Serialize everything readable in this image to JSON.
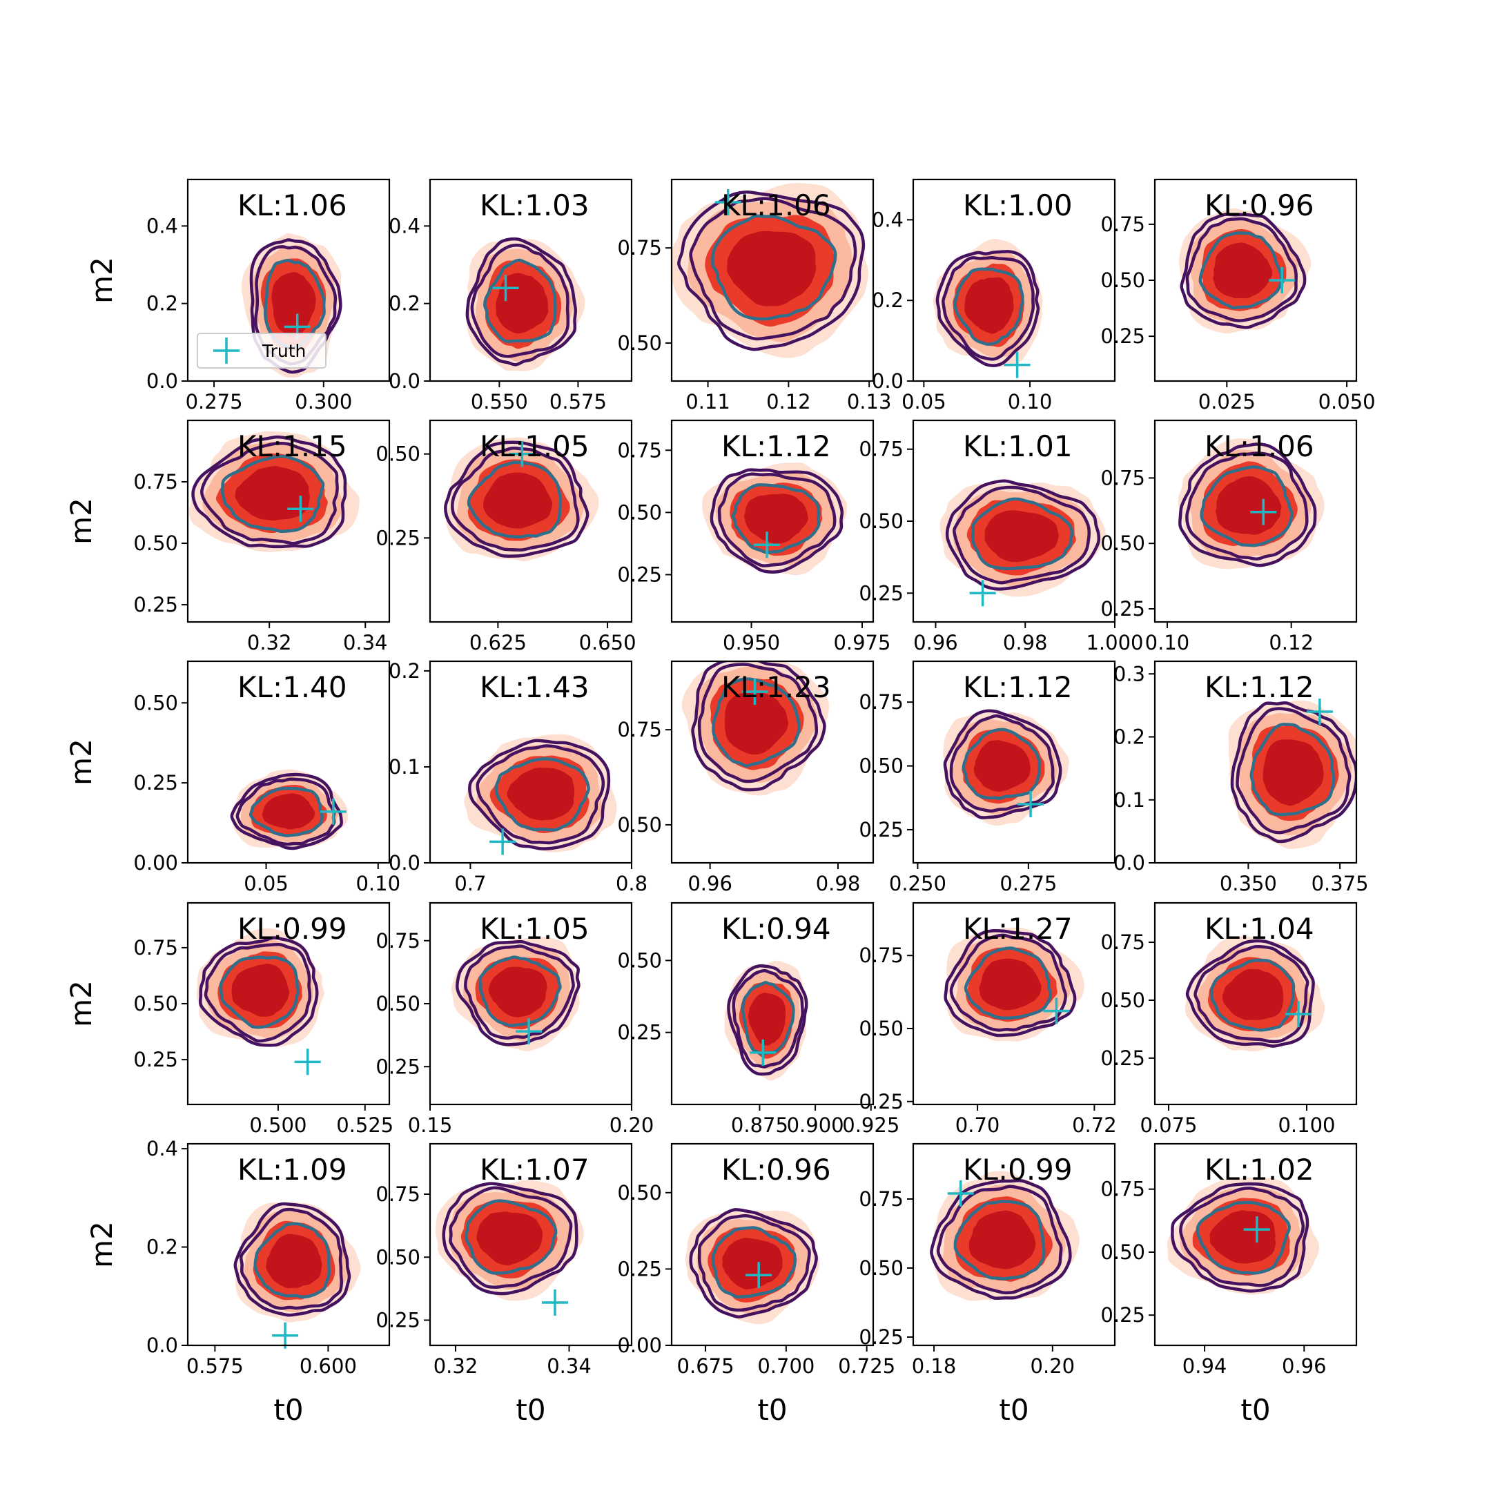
{
  "chart_data": {
    "type": "contour_grid",
    "rows": 5,
    "cols": 5,
    "x_label": "t0",
    "y_label": "m2",
    "colors": {
      "kde_outer": "#fde0d2",
      "kde_mid": "#fbb9a0",
      "kde_inner": "#ea3b2a",
      "kde_core": "#c4141b",
      "contour_outer": "#45125f",
      "contour_inner": "#2f6f8c",
      "truth": "#1fb8c4"
    },
    "legend": {
      "label": "Truth",
      "panel": 0
    },
    "panels": [
      {
        "kl": "KL:1.06",
        "xlim": [
          0.269,
          0.315
        ],
        "ylim": [
          0,
          0.52
        ],
        "xticks": [
          0.275,
          0.3
        ],
        "xtick_labels": [
          "0.275",
          "0.300"
        ],
        "yticks": [
          0,
          0.2,
          0.4
        ],
        "ytick_labels": [
          "0.0",
          "0.2",
          "0.4"
        ],
        "cx": 0.293,
        "cy": 0.2,
        "sx": 0.018,
        "sy": 0.3,
        "rot": 15,
        "truth": [
          0.294,
          0.14
        ]
      },
      {
        "kl": "KL:1.03",
        "xlim": [
          0.528,
          0.592
        ],
        "ylim": [
          0,
          0.52
        ],
        "xticks": [
          0.55,
          0.575
        ],
        "xtick_labels": [
          "0.550",
          "0.575"
        ],
        "yticks": [
          0,
          0.2,
          0.4
        ],
        "ytick_labels": [
          "0.0",
          "0.2",
          "0.4"
        ],
        "cx": 0.557,
        "cy": 0.2,
        "sx": 0.03,
        "sy": 0.28,
        "rot": 12,
        "truth": [
          0.552,
          0.24
        ]
      },
      {
        "kl": "KL:1.06",
        "xlim": [
          0.1055,
          0.1305
        ],
        "ylim": [
          0.4,
          0.93
        ],
        "xticks": [
          0.11,
          0.12,
          0.13
        ],
        "xtick_labels": [
          "0.11",
          "0.12",
          "0.13"
        ],
        "yticks": [
          0.5,
          0.75
        ],
        "ytick_labels": [
          "0.50",
          "0.75"
        ],
        "cx": 0.118,
        "cy": 0.7,
        "sx": 0.02,
        "sy": 0.36,
        "rot": -38,
        "truth": [
          0.1125,
          0.87
        ]
      },
      {
        "kl": "KL:1.00",
        "xlim": [
          0.045,
          0.14
        ],
        "ylim": [
          0,
          0.5
        ],
        "xticks": [
          0.05,
          0.1
        ],
        "xtick_labels": [
          "0.05",
          "0.10"
        ],
        "yticks": [
          0,
          0.2,
          0.4
        ],
        "ytick_labels": [
          "0.0",
          "0.2",
          "0.4"
        ],
        "cx": 0.081,
        "cy": 0.19,
        "sx": 0.042,
        "sy": 0.25,
        "rot": 5,
        "truth": [
          0.094,
          0.04
        ]
      },
      {
        "kl": "KL:0.96",
        "xlim": [
          0.01,
          0.052
        ],
        "ylim": [
          0.05,
          0.95
        ],
        "xticks": [
          0.025,
          0.05
        ],
        "xtick_labels": [
          "0.025",
          "0.050"
        ],
        "yticks": [
          0.25,
          0.5,
          0.75
        ],
        "ytick_labels": [
          "0.25",
          "0.50",
          "0.75"
        ],
        "cx": 0.028,
        "cy": 0.54,
        "sx": 0.022,
        "sy": 0.45,
        "rot": -30,
        "truth": [
          0.0365,
          0.5
        ]
      },
      {
        "kl": "KL:1.15",
        "xlim": [
          0.303,
          0.345
        ],
        "ylim": [
          0.18,
          1.0
        ],
        "xticks": [
          0.32,
          0.34
        ],
        "xtick_labels": [
          "0.32",
          "0.34"
        ],
        "yticks": [
          0.25,
          0.5,
          0.75
        ],
        "ytick_labels": [
          "0.25",
          "0.50",
          "0.75"
        ],
        "cx": 0.321,
        "cy": 0.7,
        "sx": 0.028,
        "sy": 0.4,
        "rot": -38,
        "truth": [
          0.3265,
          0.64
        ]
      },
      {
        "kl": "KL:1.05",
        "xlim": [
          0.6095,
          0.6555
        ],
        "ylim": [
          0,
          0.6
        ],
        "xticks": [
          0.625,
          0.65
        ],
        "xtick_labels": [
          "0.625",
          "0.650"
        ],
        "yticks": [
          0.25,
          0.5
        ],
        "ytick_labels": [
          "0.25",
          "0.50"
        ],
        "cx": 0.6295,
        "cy": 0.36,
        "sx": 0.028,
        "sy": 0.3,
        "rot": 5,
        "truth": [
          0.6305,
          0.5
        ]
      },
      {
        "kl": "KL:1.12",
        "xlim": [
          0.932,
          0.9775
        ],
        "ylim": [
          0.06,
          0.87
        ],
        "xticks": [
          0.95,
          0.975
        ],
        "xtick_labels": [
          "0.950",
          "0.975"
        ],
        "yticks": [
          0.25,
          0.5,
          0.75
        ],
        "ytick_labels": [
          "0.25",
          "0.50",
          "0.75"
        ],
        "cx": 0.9555,
        "cy": 0.48,
        "sx": 0.026,
        "sy": 0.36,
        "rot": -30,
        "truth": [
          0.9535,
          0.37
        ]
      },
      {
        "kl": "KL:1.01",
        "xlim": [
          0.955,
          1.0
        ],
        "ylim": [
          0.15,
          0.85
        ],
        "xticks": [
          0.96,
          0.98,
          1.0
        ],
        "xtick_labels": [
          "0.96",
          "0.98",
          "1.000"
        ],
        "yticks": [
          0.25,
          0.5,
          0.75
        ],
        "ytick_labels": [
          "0.25",
          "0.50",
          "0.75"
        ],
        "cx": 0.979,
        "cy": 0.45,
        "sx": 0.03,
        "sy": 0.32,
        "rot": -25,
        "truth": [
          0.9705,
          0.25
        ]
      },
      {
        "kl": "KL:1.06",
        "xlim": [
          0.098,
          0.1305
        ],
        "ylim": [
          0.2,
          0.97
        ],
        "xticks": [
          0.1,
          0.12
        ],
        "xtick_labels": [
          "0.10",
          "0.12"
        ],
        "yticks": [
          0.25,
          0.5,
          0.75
        ],
        "ytick_labels": [
          "0.25",
          "0.50",
          "0.75"
        ],
        "cx": 0.113,
        "cy": 0.64,
        "sx": 0.019,
        "sy": 0.4,
        "rot": -36,
        "truth": [
          0.1155,
          0.62
        ]
      },
      {
        "kl": "KL:1.40",
        "xlim": [
          0.015,
          0.105
        ],
        "ylim": [
          0,
          0.63
        ],
        "xticks": [
          0.05,
          0.1
        ],
        "xtick_labels": [
          "0.05",
          "0.10"
        ],
        "yticks": [
          0,
          0.25,
          0.5
        ],
        "ytick_labels": [
          "0.00",
          "0.25",
          "0.50"
        ],
        "cx": 0.06,
        "cy": 0.16,
        "sx": 0.042,
        "sy": 0.2,
        "rot": -20,
        "truth": [
          0.08,
          0.16
        ]
      },
      {
        "kl": "KL:1.43",
        "xlim": [
          0.675,
          0.8
        ],
        "ylim": [
          0,
          0.21
        ],
        "xticks": [
          0.7,
          0.8
        ],
        "xtick_labels": [
          "0.7",
          "0.8"
        ],
        "yticks": [
          0,
          0.1,
          0.2
        ],
        "ytick_labels": [
          "0.0",
          "0.1",
          "0.2"
        ],
        "cx": 0.745,
        "cy": 0.072,
        "sx": 0.075,
        "sy": 0.1,
        "rot": -20,
        "truth": [
          0.72,
          0.022
        ]
      },
      {
        "kl": "KL:1.23",
        "xlim": [
          0.954,
          0.9855
        ],
        "ylim": [
          0.4,
          0.93
        ],
        "xticks": [
          0.96,
          0.98
        ],
        "xtick_labels": [
          "0.96",
          "0.98"
        ],
        "yticks": [
          0.5,
          0.75
        ],
        "ytick_labels": [
          "0.50",
          "0.75"
        ],
        "cx": 0.967,
        "cy": 0.77,
        "sx": 0.018,
        "sy": 0.3,
        "rot": -38,
        "truth": [
          0.967,
          0.85
        ]
      },
      {
        "kl": "KL:1.12",
        "xlim": [
          0.249,
          0.2945
        ],
        "ylim": [
          0.12,
          0.91
        ],
        "xticks": [
          0.25,
          0.275
        ],
        "xtick_labels": [
          "0.250",
          "0.275"
        ],
        "yticks": [
          0.25,
          0.5,
          0.75
        ],
        "ytick_labels": [
          "0.25",
          "0.50",
          "0.75"
        ],
        "cx": 0.269,
        "cy": 0.5,
        "sx": 0.023,
        "sy": 0.36,
        "rot": -30,
        "truth": [
          0.2755,
          0.35
        ]
      },
      {
        "kl": "KL:1.12",
        "xlim": [
          0.3245,
          0.3795
        ],
        "ylim": [
          0,
          0.32
        ],
        "xticks": [
          0.35,
          0.375
        ],
        "xtick_labels": [
          "0.350",
          "0.375"
        ],
        "yticks": [
          0,
          0.1,
          0.2,
          0.3
        ],
        "ytick_labels": [
          "0.0",
          "0.1",
          "0.2",
          "0.3"
        ],
        "cx": 0.362,
        "cy": 0.145,
        "sx": 0.03,
        "sy": 0.19,
        "rot": 5,
        "truth": [
          0.3695,
          0.24
        ]
      },
      {
        "kl": "KL:0.99",
        "xlim": [
          0.474,
          0.532
        ],
        "ylim": [
          0.05,
          0.95
        ],
        "xticks": [
          0.5,
          0.525
        ],
        "xtick_labels": [
          "0.500",
          "0.525"
        ],
        "yticks": [
          0.25,
          0.5,
          0.75
        ],
        "ytick_labels": [
          "0.25",
          "0.50",
          "0.75"
        ],
        "cx": 0.495,
        "cy": 0.56,
        "sx": 0.03,
        "sy": 0.42,
        "rot": -30,
        "truth": [
          0.5085,
          0.24
        ]
      },
      {
        "kl": "KL:1.05",
        "xlim": [
          0.15,
          0.2
        ],
        "ylim": [
          0.1,
          0.9
        ],
        "xticks": [
          0.15,
          0.2
        ],
        "xtick_labels": [
          "0.15",
          "0.20"
        ],
        "yticks": [
          0.25,
          0.5,
          0.75
        ],
        "ytick_labels": [
          "0.25",
          "0.50",
          "0.75"
        ],
        "cx": 0.172,
        "cy": 0.55,
        "sx": 0.026,
        "sy": 0.36,
        "rot": -30,
        "truth": [
          0.1745,
          0.39
        ]
      },
      {
        "kl": "KL:0.94",
        "xlim": [
          0.8355,
          0.926
        ],
        "ylim": [
          0,
          0.7
        ],
        "xticks": [
          0.875,
          0.9,
          0.925
        ],
        "xtick_labels": [
          "0.875",
          "0.900",
          "0.925"
        ],
        "yticks": [
          0.25,
          0.5
        ],
        "ytick_labels": [
          "0.25",
          "0.50"
        ],
        "cx": 0.8785,
        "cy": 0.3,
        "sx": 0.03,
        "sy": 0.33,
        "rot": -5,
        "truth": [
          0.8765,
          0.18
        ]
      },
      {
        "kl": "KL:1.27",
        "xlim": [
          0.689,
          0.7235
        ],
        "ylim": [
          0.24,
          0.93
        ],
        "xticks": [
          0.7,
          0.72
        ],
        "xtick_labels": [
          "0.70",
          "0.72"
        ],
        "yticks": [
          0.25,
          0.5,
          0.75
        ],
        "ytick_labels": [
          "0.25",
          "0.50",
          "0.75"
        ],
        "cx": 0.7055,
        "cy": 0.65,
        "sx": 0.019,
        "sy": 0.32,
        "rot": -30,
        "truth": [
          0.7135,
          0.56
        ]
      },
      {
        "kl": "KL:1.04",
        "xlim": [
          0.0725,
          0.109
        ],
        "ylim": [
          0.05,
          0.92
        ],
        "xticks": [
          0.075,
          0.1
        ],
        "xtick_labels": [
          "0.075",
          "0.100"
        ],
        "yticks": [
          0.25,
          0.5,
          0.75
        ],
        "ytick_labels": [
          "0.25",
          "0.50",
          "0.75"
        ],
        "cx": 0.0905,
        "cy": 0.52,
        "sx": 0.02,
        "sy": 0.4,
        "rot": -28,
        "truth": [
          0.0985,
          0.44
        ]
      },
      {
        "kl": "KL:1.09",
        "xlim": [
          0.569,
          0.6135
        ],
        "ylim": [
          0,
          0.41
        ],
        "xticks": [
          0.575,
          0.6
        ],
        "xtick_labels": [
          "0.575",
          "0.600"
        ],
        "yticks": [
          0,
          0.2,
          0.4
        ],
        "ytick_labels": [
          "0.0",
          "0.2",
          "0.4"
        ],
        "cx": 0.5925,
        "cy": 0.17,
        "sx": 0.022,
        "sy": 0.2,
        "rot": 12,
        "truth": [
          0.5905,
          0.02
        ]
      },
      {
        "kl": "KL:1.07",
        "xlim": [
          0.3155,
          0.351
        ],
        "ylim": [
          0.15,
          0.95
        ],
        "xticks": [
          0.32,
          0.34
        ],
        "xtick_labels": [
          "0.32",
          "0.34"
        ],
        "yticks": [
          0.25,
          0.5,
          0.75
        ],
        "ytick_labels": [
          "0.25",
          "0.50",
          "0.75"
        ],
        "cx": 0.3295,
        "cy": 0.58,
        "sx": 0.021,
        "sy": 0.38,
        "rot": -30,
        "truth": [
          0.3375,
          0.32
        ]
      },
      {
        "kl": "KL:0.96",
        "xlim": [
          0.6645,
          0.727
        ],
        "ylim": [
          0,
          0.66
        ],
        "xticks": [
          0.675,
          0.7,
          0.725
        ],
        "xtick_labels": [
          "0.675",
          "0.700",
          "0.725"
        ],
        "yticks": [
          0,
          0.25,
          0.5
        ],
        "ytick_labels": [
          "0.00",
          "0.25",
          "0.50"
        ],
        "cx": 0.6895,
        "cy": 0.27,
        "sx": 0.034,
        "sy": 0.3,
        "rot": -12,
        "truth": [
          0.6915,
          0.23
        ]
      },
      {
        "kl": "KL:0.99",
        "xlim": [
          0.1765,
          0.2105
        ],
        "ylim": [
          0.22,
          0.95
        ],
        "xticks": [
          0.18,
          0.2
        ],
        "xtick_labels": [
          "0.18",
          "0.20"
        ],
        "yticks": [
          0.25,
          0.5,
          0.75
        ],
        "ytick_labels": [
          "0.25",
          "0.50",
          "0.75"
        ],
        "cx": 0.1915,
        "cy": 0.6,
        "sx": 0.02,
        "sy": 0.38,
        "rot": -34,
        "truth": [
          0.1845,
          0.77
        ]
      },
      {
        "kl": "KL:1.02",
        "xlim": [
          0.93,
          0.9705
        ],
        "ylim": [
          0.13,
          0.93
        ],
        "xticks": [
          0.94,
          0.96
        ],
        "xtick_labels": [
          "0.94",
          "0.96"
        ],
        "yticks": [
          0.25,
          0.5,
          0.75
        ],
        "ytick_labels": [
          "0.25",
          "0.50",
          "0.75"
        ],
        "cx": 0.948,
        "cy": 0.56,
        "sx": 0.024,
        "sy": 0.38,
        "rot": -32,
        "truth": [
          0.9505,
          0.59
        ]
      }
    ]
  }
}
